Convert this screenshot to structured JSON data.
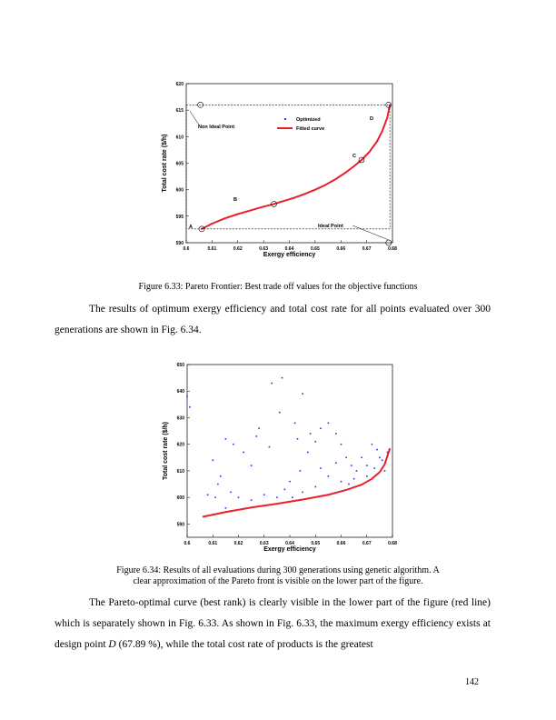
{
  "chart_data": [
    {
      "type": "scatter-line",
      "xlabel": "Exergy efficiency",
      "ylabel": "Total cost rate ($/h)",
      "xlim": [
        0.6,
        0.68
      ],
      "xticks": [
        0.6,
        0.61,
        0.62,
        0.63,
        0.64,
        0.65,
        0.66,
        0.67,
        0.68
      ],
      "ylim": [
        590,
        620
      ],
      "yticks": [
        590,
        595,
        600,
        605,
        610,
        615,
        620
      ],
      "annotations": [
        "Non Ideal Point",
        "A",
        "B",
        "C",
        "D",
        "Ideal Point"
      ],
      "series": [
        {
          "name": "Optimized",
          "color": "#2b2bff",
          "mode": "points",
          "x": [
            0.606,
            0.61,
            0.615,
            0.62,
            0.625,
            0.63,
            0.634,
            0.638,
            0.642,
            0.646,
            0.65,
            0.654,
            0.658,
            0.662,
            0.665,
            0.668,
            0.671,
            0.674,
            0.676,
            0.678,
            0.679
          ],
          "values": [
            592.6,
            593.6,
            594.6,
            595.4,
            596.1,
            596.8,
            597.3,
            597.9,
            598.5,
            599.2,
            600.0,
            600.9,
            602.0,
            603.3,
            604.4,
            605.6,
            607.1,
            609.1,
            611.0,
            613.6,
            616.0
          ]
        },
        {
          "name": "Fitted curve",
          "color": "#e8202a",
          "mode": "line",
          "x": [
            0.606,
            0.61,
            0.615,
            0.62,
            0.625,
            0.63,
            0.634,
            0.638,
            0.642,
            0.646,
            0.65,
            0.654,
            0.658,
            0.662,
            0.665,
            0.668,
            0.671,
            0.674,
            0.676,
            0.678,
            0.679
          ],
          "values": [
            592.6,
            593.6,
            594.6,
            595.4,
            596.1,
            596.8,
            597.3,
            597.9,
            598.5,
            599.2,
            600.0,
            600.9,
            602.0,
            603.3,
            604.4,
            605.6,
            607.1,
            609.1,
            611.0,
            613.6,
            616.0
          ]
        }
      ]
    },
    {
      "type": "scatter-line",
      "xlabel": "Exergy efficiency",
      "ylabel": "Total cost rate ($/h)",
      "xlim": [
        0.6,
        0.68
      ],
      "xticks": [
        0.6,
        0.61,
        0.62,
        0.63,
        0.64,
        0.65,
        0.66,
        0.67,
        0.68
      ],
      "ylim": [
        585,
        650
      ],
      "yticks": [
        590,
        600,
        610,
        620,
        630,
        640,
        650
      ],
      "series": [
        {
          "color": "#2b2bff",
          "mode": "points",
          "x": [
            0.6,
            0.601,
            0.633,
            0.637,
            0.645,
            0.636,
            0.642,
            0.628,
            0.615,
            0.618,
            0.622,
            0.625,
            0.61,
            0.613,
            0.612,
            0.608,
            0.611,
            0.617,
            0.62,
            0.63,
            0.638,
            0.64,
            0.644,
            0.647,
            0.65,
            0.652,
            0.655,
            0.658,
            0.66,
            0.662,
            0.664,
            0.666,
            0.668,
            0.67,
            0.672,
            0.674,
            0.676,
            0.677,
            0.655,
            0.65,
            0.645,
            0.635,
            0.625,
            0.615,
            0.66,
            0.665,
            0.67,
            0.673,
            0.675,
            0.678,
            0.648,
            0.643,
            0.632,
            0.627,
            0.652,
            0.658,
            0.663,
            0.641
          ],
          "values": [
            638,
            634,
            643,
            645,
            639,
            632,
            628,
            626,
            622,
            620,
            617,
            612,
            614,
            608,
            605,
            601,
            600,
            602,
            600,
            601,
            603,
            606,
            610,
            617,
            621,
            626,
            628,
            624,
            620,
            615,
            612,
            610,
            615,
            612,
            620,
            618,
            614,
            610,
            608,
            604,
            602,
            600,
            599,
            596,
            606,
            607,
            608,
            611,
            615,
            617,
            624,
            622,
            619,
            623,
            611,
            613,
            605,
            600
          ]
        },
        {
          "color": "#e8202a",
          "mode": "line",
          "x": [
            0.606,
            0.615,
            0.625,
            0.635,
            0.645,
            0.655,
            0.662,
            0.668,
            0.672,
            0.675,
            0.677,
            0.679
          ],
          "values": [
            592.7,
            594.5,
            596.2,
            597.6,
            599.2,
            601.0,
            602.8,
            604.8,
            607.0,
            609.5,
            612.5,
            618.5
          ]
        }
      ]
    }
  ],
  "document": {
    "caption_1": "Figure 6.33: Pareto Frontier: Best trade off values for the objective functions",
    "paragraph_1": "The results of optimum exergy efficiency and total cost rate for all points evaluated over 300 generations are shown in Fig. 6.34.",
    "caption_2": "Figure 6.34: Results of all evaluations during 300 generations using genetic algorithm. A clear approximation of the Pareto front is visible on the lower part of the figure.",
    "paragraph_2": [
      "The Pareto-optimal curve (best rank) is clearly visible in the lower part of the figure (red line) which is separately shown in Fig. 6.33. As shown in Fig. 6.33, the maximum exergy efficiency exists at design point ",
      "D",
      " (67.89 %), while the total cost rate of products is the greatest"
    ],
    "page_number": "142"
  }
}
